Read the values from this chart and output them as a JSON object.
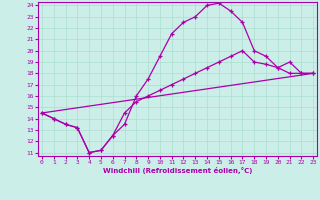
{
  "xlabel": "Windchill (Refroidissement éolien,°C)",
  "bg_color": "#cceee8",
  "grid_color": "#aaddcc",
  "line_color": "#aa00aa",
  "xmin": 0,
  "xmax": 23,
  "ymin": 11,
  "ymax": 24,
  "xticks": [
    0,
    1,
    2,
    3,
    4,
    5,
    6,
    7,
    8,
    9,
    10,
    11,
    12,
    13,
    14,
    15,
    16,
    17,
    18,
    19,
    20,
    21,
    22,
    23
  ],
  "yticks": [
    11,
    12,
    13,
    14,
    15,
    16,
    17,
    18,
    19,
    20,
    21,
    22,
    23,
    24
  ],
  "line1_x": [
    0,
    1,
    2,
    3,
    4,
    5,
    6,
    7,
    8,
    9,
    10,
    11,
    12,
    13,
    14,
    15,
    16,
    17,
    18,
    19,
    20,
    21,
    22,
    23
  ],
  "line1_y": [
    14.5,
    14.0,
    13.5,
    13.2,
    11.0,
    11.2,
    12.5,
    14.5,
    15.5,
    16.0,
    16.5,
    17.0,
    17.5,
    18.0,
    18.5,
    19.0,
    19.5,
    20.0,
    19.0,
    18.8,
    18.5,
    19.0,
    18.0,
    18.0
  ],
  "line2_x": [
    0,
    23
  ],
  "line2_y": [
    14.5,
    18.0
  ],
  "line3_x": [
    0,
    1,
    2,
    3,
    4,
    5,
    6,
    7,
    8,
    9,
    10,
    11,
    12,
    13,
    14,
    15,
    16,
    17,
    18,
    19,
    20,
    21,
    22,
    23
  ],
  "line3_y": [
    14.5,
    14.0,
    13.5,
    13.2,
    11.0,
    11.2,
    12.5,
    13.5,
    16.0,
    17.5,
    19.5,
    21.5,
    22.5,
    23.0,
    24.0,
    24.2,
    23.5,
    22.5,
    20.0,
    19.5,
    18.5,
    18.0,
    18.0,
    18.0
  ]
}
